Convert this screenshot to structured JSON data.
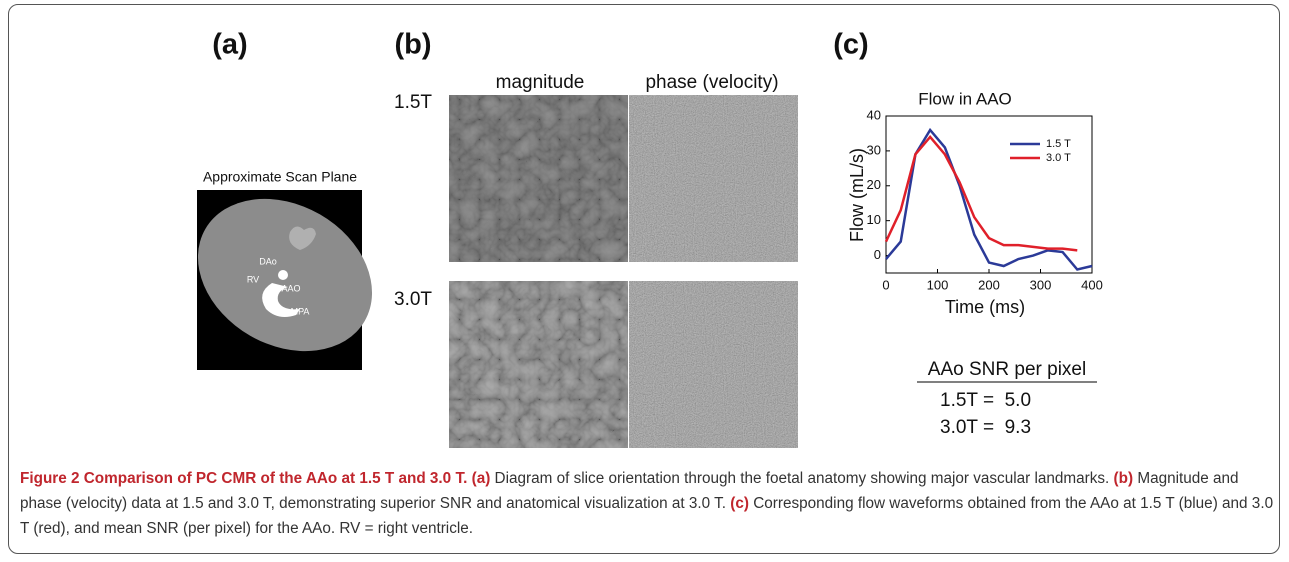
{
  "figure": {
    "panel_a": {
      "label": "(a)",
      "title": "Approximate Scan Plane",
      "anatomy": [
        "DAo",
        "RV",
        "AAO",
        "MPA"
      ]
    },
    "panel_b": {
      "label": "(b)",
      "columns": [
        "magnitude",
        "phase (velocity)"
      ],
      "rows": [
        "1.5T",
        "3.0T"
      ]
    },
    "panel_c": {
      "label": "(c)",
      "snr_title": "AAo SNR per pixel",
      "snr_rows": [
        "1.5T =  5.0",
        "3.0T =  9.3"
      ]
    }
  },
  "chart_data": {
    "type": "line",
    "title": "Flow in AAO",
    "x_label": "Time (ms)",
    "y_label": "Flow (mL/s)",
    "x": [
      0,
      28.6,
      57.1,
      85.7,
      114.3,
      142.9,
      171.4,
      200,
      228.6,
      257.1,
      285.7,
      314.3,
      342.9,
      371.4,
      400
    ],
    "series": [
      {
        "name": "1.5 T",
        "color": "#2b3a98",
        "values": [
          -1,
          4,
          29,
          36,
          31,
          20,
          6,
          -2,
          -3,
          -1,
          0,
          1.5,
          1,
          -4,
          -3
        ]
      },
      {
        "name": "3.0 T",
        "color": "#e0202a",
        "values": [
          4,
          13,
          29,
          34,
          29,
          21,
          11,
          5,
          3,
          3,
          2.5,
          2,
          2,
          1.5,
          null
        ]
      }
    ],
    "xlim": [
      0,
      400
    ],
    "ylim": [
      -5,
      40
    ],
    "xticks": [
      0,
      100,
      200,
      300,
      400
    ],
    "yticks": [
      0,
      10,
      20,
      30,
      40
    ],
    "legend": "upper right",
    "grid": false
  },
  "caption": {
    "title": "Figure 2 Comparison of PC CMR of the AAo at 1.5 T and 3.0 T.",
    "parts": [
      {
        "label": "(a)",
        "text": "Diagram of slice orientation through the foetal anatomy showing major vascular landmarks."
      },
      {
        "label": "(b)",
        "text": "Magnitude and phase (velocity) data at 1.5 and 3.0 T, demonstrating superior SNR and anatomical visualization at 3.0 T."
      },
      {
        "label": "(c)",
        "text": "Corresponding flow waveforms obtained from the AAo at 1.5 T (blue) and 3.0 T (red), and mean SNR (per pixel) for the AAo. RV = right ventricle."
      }
    ]
  }
}
